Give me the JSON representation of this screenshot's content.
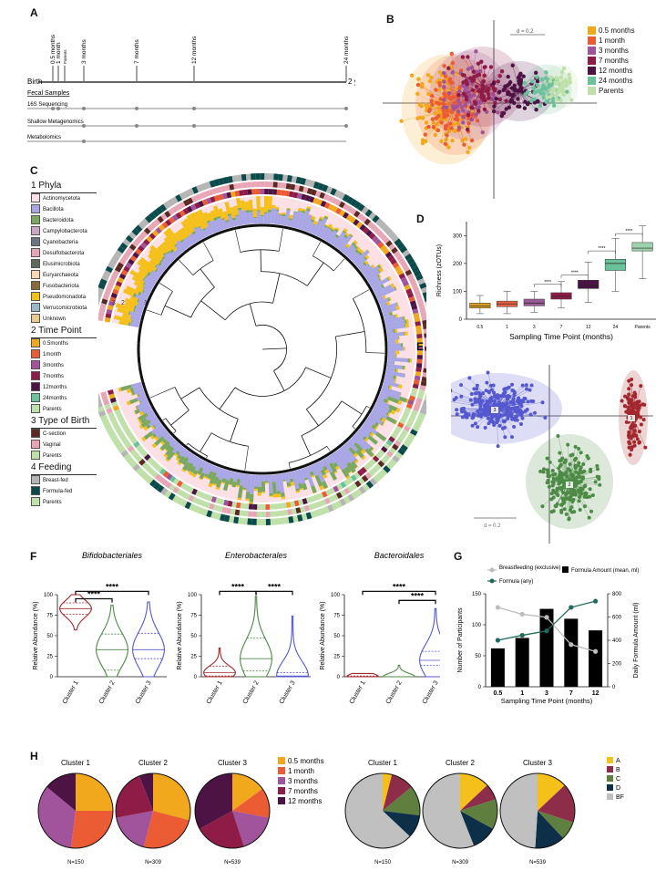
{
  "panels": {
    "A": {
      "letter": "A",
      "timepoints": [
        "0.5 months",
        "1 month",
        "Parents",
        "3 months",
        "7 months",
        "12 months",
        "24 months"
      ],
      "birth_label": "Birth",
      "end_label": "2 years",
      "fecal_label": "Fecal Samples",
      "assays": [
        "16S Sequencing",
        "Shallow Metagenomics",
        "Metabolomics"
      ]
    },
    "B": {
      "letter": "B",
      "scale_label": "d = 0.2",
      "legend": [
        {
          "label": "0.5 months",
          "color": "#f2a81d"
        },
        {
          "label": "1 month",
          "color": "#ec5c34"
        },
        {
          "label": "3 months",
          "color": "#a1539c"
        },
        {
          "label": "7 months",
          "color": "#8e1c46"
        },
        {
          "label": "12 months",
          "color": "#4d1344"
        },
        {
          "label": "24 months",
          "color": "#69c29a"
        },
        {
          "label": "Parents",
          "color": "#bfe0a8"
        }
      ]
    },
    "C": {
      "letter": "C",
      "ring_labels": [
        "4",
        "3",
        "2",
        "1"
      ],
      "groups": [
        {
          "title": "1 Phyla",
          "items": [
            {
              "label": "Actinomycetota",
              "color": "#fbe1e6"
            },
            {
              "label": "Bacillota",
              "color": "#a9a6e6"
            },
            {
              "label": "Bacteroidota",
              "color": "#7aa761"
            },
            {
              "label": "Campylobacterota",
              "color": "#c9a6c4"
            },
            {
              "label": "Cyanobacteria",
              "color": "#6b7480"
            },
            {
              "label": "Desulfobacterota",
              "color": "#e8a5b6"
            },
            {
              "label": "Elusimicrobiota",
              "color": "#5e6a5a"
            },
            {
              "label": "Euryarchaeota",
              "color": "#fbd6b0"
            },
            {
              "label": "Fusobacteriota",
              "color": "#8a6a3a"
            },
            {
              "label": "Pseudomonadota",
              "color": "#f5c01a"
            },
            {
              "label": "Verrucomicrobiota",
              "color": "#9ab8c8"
            },
            {
              "label": "Unknown",
              "color": "#e9c98f"
            }
          ]
        },
        {
          "title": "2 Time Point",
          "items": [
            {
              "label": "0.5months",
              "color": "#f2a81d"
            },
            {
              "label": "1month",
              "color": "#ec5c34"
            },
            {
              "label": "3months",
              "color": "#a1539c"
            },
            {
              "label": "7months",
              "color": "#8e1c46"
            },
            {
              "label": "12months",
              "color": "#4d1344"
            },
            {
              "label": "24months",
              "color": "#69c29a"
            },
            {
              "label": "Parents",
              "color": "#bfe0a8"
            }
          ]
        },
        {
          "title": "3 Type of Birth",
          "items": [
            {
              "label": "C-section",
              "color": "#5a2a22"
            },
            {
              "label": "Vaginal",
              "color": "#e8a5b6"
            },
            {
              "label": "Parents",
              "color": "#bfe0a8"
            }
          ]
        },
        {
          "title": "4 Feeding",
          "items": [
            {
              "label": "Breast-fed",
              "color": "#b5b5b5"
            },
            {
              "label": "Formula-fed",
              "color": "#0b4a4a"
            },
            {
              "label": "Parents",
              "color": "#bfe0a8"
            }
          ]
        }
      ]
    },
    "D": {
      "letter": "D",
      "sig": "****"
    },
    "E": {
      "letter": "E",
      "scale_label": "d = 0.2",
      "cluster_labels": [
        "1",
        "2",
        "3"
      ]
    },
    "F": {
      "letter": "F",
      "sig": "****"
    },
    "G": {
      "letter": "G",
      "legend_breastfeeding": "Breastfeeding (exclusive)",
      "legend_formula": "Formula (any)",
      "legend_amount": "Formula Amount (mean, ml)"
    },
    "H": {
      "letter": "H",
      "left_legend": [
        {
          "label": "0.5 months",
          "color": "#f2a81d"
        },
        {
          "label": "1 month",
          "color": "#ec5c34"
        },
        {
          "label": "3 months",
          "color": "#a1539c"
        },
        {
          "label": "7 months",
          "color": "#8e1c46"
        },
        {
          "label": "12 months",
          "color": "#4d1344"
        }
      ],
      "right_legend": [
        {
          "label": "A",
          "color": "#f5c01a"
        },
        {
          "label": "B",
          "color": "#8e2d4a"
        },
        {
          "label": "C",
          "color": "#5f7f3f"
        },
        {
          "label": "D",
          "color": "#0d2f47"
        },
        {
          "label": "BF",
          "color": "#c0c0c0"
        }
      ]
    }
  },
  "chart_data": [
    {
      "id": "D",
      "type": "box",
      "title": "",
      "xlabel": "Sampling Time Point (months)",
      "ylabel": "Richness (zOTUs)",
      "categories": [
        "0.5",
        "1",
        "3",
        "7",
        "12",
        "24",
        "Parents"
      ],
      "colors": [
        "#d9a12a",
        "#e4603e",
        "#9c5a99",
        "#8e1c46",
        "#4d1344",
        "#69c29a",
        "#9fd3ad"
      ],
      "whisker_low": [
        20,
        20,
        25,
        40,
        60,
        100,
        145
      ],
      "q1": [
        40,
        45,
        48,
        72,
        110,
        175,
        245
      ],
      "median": [
        48,
        55,
        58,
        82,
        120,
        200,
        255
      ],
      "q3": [
        58,
        65,
        72,
        95,
        140,
        215,
        275
      ],
      "whisker_high": [
        85,
        100,
        100,
        135,
        205,
        290,
        335
      ],
      "ylim": [
        0,
        350
      ],
      "yticks": [
        0,
        100,
        200,
        300
      ]
    },
    {
      "id": "F",
      "type": "violin",
      "ylabel": "Relative Abundance (%)",
      "ylim": [
        0,
        100
      ],
      "yticks": [
        0,
        25,
        50,
        75,
        100
      ],
      "categories": [
        "Cluster 1",
        "Cluster 2",
        "Cluster 3"
      ],
      "colors": [
        "#a3282e",
        "#4d8a46",
        "#5558cf"
      ],
      "subplots": [
        {
          "title": "Bifidobacteriales",
          "ranges": [
            [
              57,
              100
            ],
            [
              0,
              87
            ],
            [
              0,
              91
            ]
          ],
          "q1": [
            76,
            8,
            22
          ],
          "median": [
            83,
            33,
            33
          ],
          "q3": [
            90,
            52,
            53
          ],
          "sig": [
            [
              1,
              2,
              95
            ],
            [
              1,
              3,
              104
            ]
          ]
        },
        {
          "title": "Enterobacterales",
          "ranges": [
            [
              0,
              35
            ],
            [
              0,
              98
            ],
            [
              0,
              74
            ]
          ],
          "q1": [
            1,
            7,
            0
          ],
          "median": [
            5,
            22,
            1
          ],
          "q3": [
            13,
            47,
            5
          ],
          "sig": [
            [
              1,
              2,
              104
            ],
            [
              2,
              3,
              104
            ]
          ]
        },
        {
          "title": "Bacteroidales",
          "ranges": [
            [
              0,
              4
            ],
            [
              0,
              14
            ],
            [
              0,
              83
            ]
          ],
          "q1": [
            0,
            0,
            14
          ],
          "median": [
            0,
            0,
            20
          ],
          "q3": [
            1,
            0,
            31
          ],
          "sig": [
            [
              1,
              3,
              104
            ],
            [
              2,
              3,
              93
            ]
          ]
        }
      ]
    },
    {
      "id": "G",
      "type": "bar+line",
      "xlabel": "Sampling Time Point (months)",
      "ylabel_left": "Number of Participants",
      "ylabel_right": "Daily Formula Amount (ml)",
      "categories": [
        "0.5",
        "1",
        "3",
        "7",
        "12"
      ],
      "ylim_left": [
        0,
        150
      ],
      "yticks_left": [
        0,
        50,
        100,
        150
      ],
      "ylim_right": [
        0,
        800
      ],
      "yticks_right": [
        0,
        200,
        400,
        600,
        800
      ],
      "series": [
        {
          "name": "Formula Amount (mean, ml)",
          "type": "bar",
          "axis": "right",
          "color": "#000000",
          "values": [
            330,
            420,
            670,
            585,
            485
          ]
        },
        {
          "name": "Breastfeeding (exclusive)",
          "type": "line",
          "axis": "left",
          "color": "#bdbdbd",
          "values": [
            128,
            117,
            112,
            68,
            57
          ]
        },
        {
          "name": "Formula (any)",
          "type": "line",
          "axis": "left",
          "color": "#1f6b5c",
          "values": [
            75,
            83,
            90,
            128,
            138
          ]
        }
      ]
    },
    {
      "id": "H-left",
      "type": "pie",
      "pies": [
        {
          "title": "Cluster 1",
          "n": "N=150",
          "values": [
            25,
            27,
            34,
            0,
            14
          ]
        },
        {
          "title": "Cluster 2",
          "n": "N=309",
          "values": [
            29,
            25,
            18,
            22,
            6
          ]
        },
        {
          "title": "Cluster 3",
          "n": "N=539",
          "values": [
            15,
            13,
            17,
            22,
            33
          ]
        }
      ],
      "legend": [
        "0.5 months",
        "1 month",
        "3 months",
        "7 months",
        "12 months"
      ]
    },
    {
      "id": "H-right",
      "type": "pie",
      "pies": [
        {
          "title": "Cluster 1",
          "n": "N=150",
          "values": [
            4,
            10,
            13,
            10,
            63
          ]
        },
        {
          "title": "Cluster 2",
          "n": "N=309",
          "values": [
            13,
            7,
            13,
            11,
            56
          ]
        },
        {
          "title": "Cluster 3",
          "n": "N=539",
          "values": [
            13,
            17,
            8,
            13,
            49
          ]
        }
      ],
      "legend": [
        "A",
        "B",
        "C",
        "D",
        "BF"
      ]
    }
  ]
}
